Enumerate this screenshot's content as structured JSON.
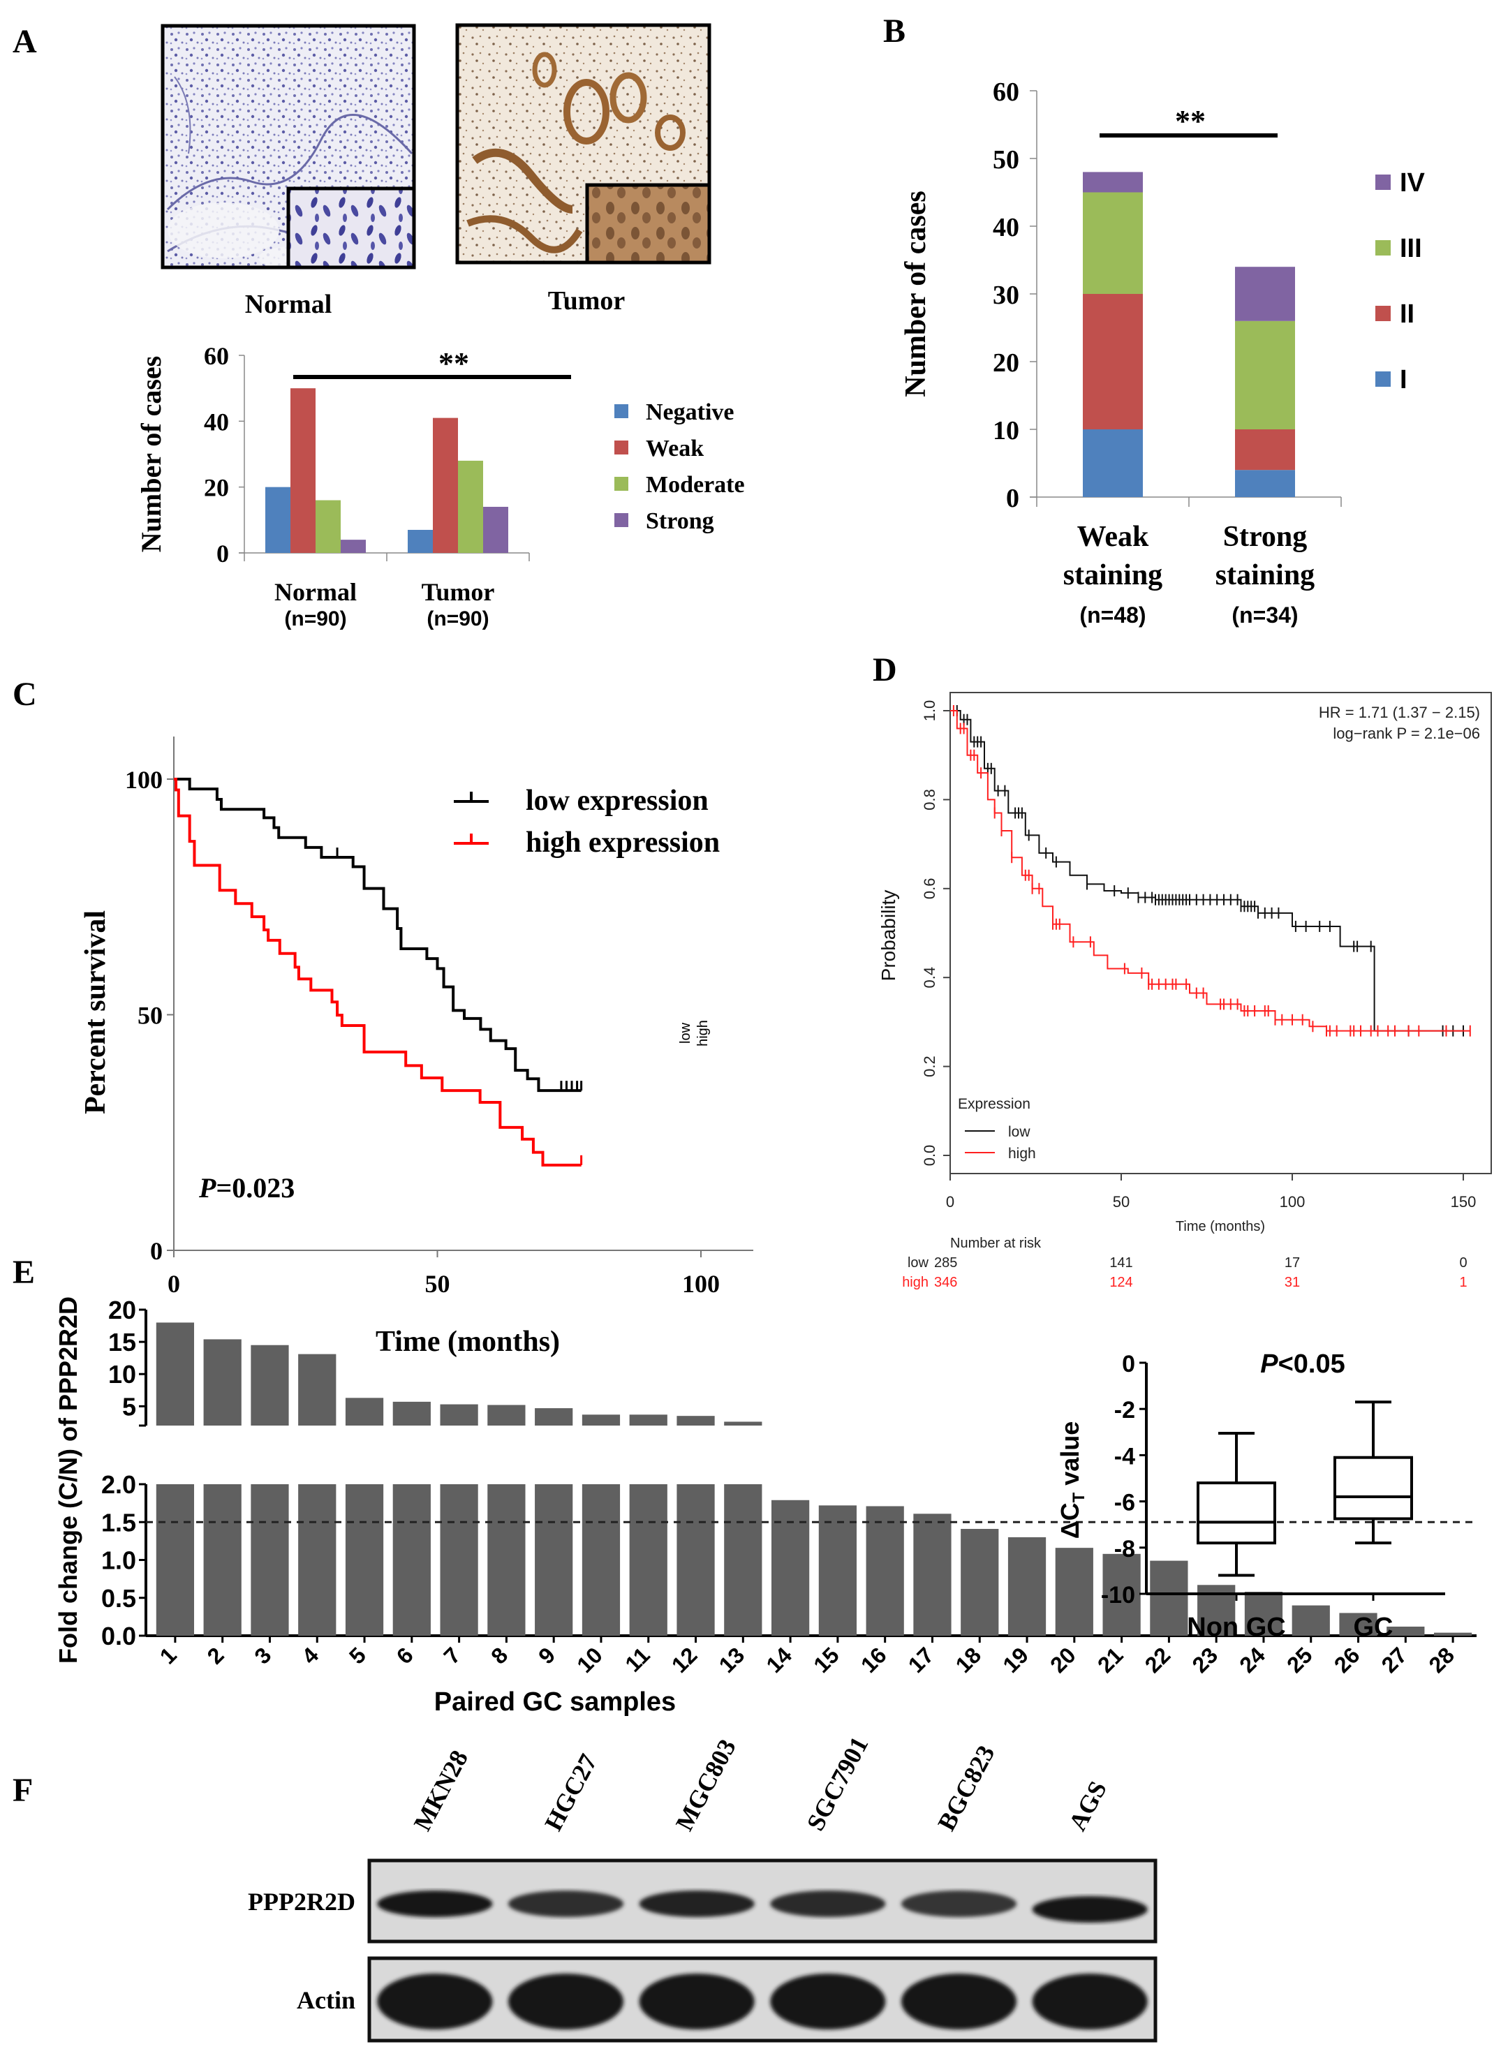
{
  "figure": {
    "panels": {
      "A": {
        "letter": "A",
        "images": [
          {
            "label": "Normal",
            "stain": "blue-hematoxylin",
            "inset": true
          },
          {
            "label": "Tumor",
            "stain": "brown-DAB",
            "inset": true
          }
        ]
      },
      "B": {
        "letter": "B"
      },
      "C": {
        "letter": "C"
      },
      "D": {
        "letter": "D"
      },
      "E": {
        "letter": "E"
      },
      "F": {
        "letter": "F"
      }
    },
    "colors": {
      "blue": "#4F81BD",
      "red": "#C0504D",
      "green": "#9BBB59",
      "purple": "#8064A2",
      "bar_gray": "#606060",
      "km_low": "#000000",
      "km_high": "#FF0000"
    }
  },
  "chart_data": [
    {
      "id": "A",
      "type": "bar",
      "title": "",
      "xlabel": "",
      "ylabel": "Number of cases",
      "ylim": [
        0,
        60
      ],
      "yticks": [
        "0",
        "20",
        "40",
        "60"
      ],
      "ytick_values": [
        0,
        20,
        40,
        60
      ],
      "categories": [
        "Normal",
        "Tumor"
      ],
      "category_sublabels": [
        "(n=90)",
        "(n=90)"
      ],
      "series": [
        {
          "name": "Negative",
          "values": [
            20,
            7
          ]
        },
        {
          "name": "Weak",
          "values": [
            50,
            41
          ]
        },
        {
          "name": "Moderate",
          "values": [
            16,
            28
          ]
        },
        {
          "name": "Strong",
          "values": [
            4,
            14
          ]
        }
      ],
      "legend_position": "right",
      "annotation": "**",
      "grid": false
    },
    {
      "id": "B",
      "type": "bar",
      "stacked": true,
      "title": "",
      "xlabel": "",
      "ylabel": "Number of cases",
      "ylim": [
        0,
        60
      ],
      "yticks": [
        "0",
        "10",
        "20",
        "30",
        "40",
        "50",
        "60"
      ],
      "ytick_values": [
        0,
        10,
        20,
        30,
        40,
        50,
        60
      ],
      "categories": [
        "Weak staining",
        "Strong staining"
      ],
      "category_lines": [
        [
          "Weak",
          "staining",
          "(n=48)"
        ],
        [
          "Strong",
          "staining",
          "(n=34)"
        ]
      ],
      "series": [
        {
          "name": "I",
          "values": [
            10,
            4
          ]
        },
        {
          "name": "II",
          "values": [
            20,
            6
          ]
        },
        {
          "name": "III",
          "values": [
            15,
            16
          ]
        },
        {
          "name": "IV",
          "values": [
            3,
            8
          ]
        }
      ],
      "legend_order": [
        "IV",
        "III",
        "II",
        "I"
      ],
      "legend_position": "right",
      "annotation": "**",
      "grid": false
    },
    {
      "id": "C",
      "type": "line",
      "subtype": "kaplan-meier",
      "title": "",
      "xlabel": "Time (months)",
      "ylabel": "Percent survival",
      "xlim": [
        0,
        110
      ],
      "ylim": [
        0,
        110
      ],
      "xticks": [
        "0",
        "50",
        "100"
      ],
      "xtick_values": [
        0,
        50,
        100
      ],
      "yticks": [
        "0",
        "50",
        "100"
      ],
      "ytick_values": [
        0,
        50,
        100
      ],
      "series": [
        {
          "name": "low expression",
          "end_label": "low",
          "steps": [
            [
              0,
              100
            ],
            [
              3,
              97.9
            ],
            [
              8.2,
              95.7
            ],
            [
              9,
              93.6
            ],
            [
              17.1,
              91.8
            ],
            [
              19,
              89.7
            ],
            [
              19.9,
              87.6
            ],
            [
              25,
              85.5
            ],
            [
              28,
              83.4
            ],
            [
              34,
              81.4
            ],
            [
              36.1,
              76.8
            ],
            [
              39.8,
              72.5
            ],
            [
              42.4,
              68.3
            ],
            [
              43.1,
              64
            ],
            [
              48,
              61.9
            ],
            [
              50,
              59.8
            ],
            [
              51.2,
              55.9
            ],
            [
              53,
              50.9
            ],
            [
              55.1,
              49.2
            ],
            [
              58.2,
              46.9
            ],
            [
              60.1,
              44.5
            ],
            [
              63,
              42.8
            ],
            [
              64.8,
              38.2
            ],
            [
              67.1,
              36.4
            ],
            [
              69.2,
              33.9
            ]
          ],
          "end_x": 77.3,
          "censor_x": [
            31,
            73.5,
            74.5,
            75.5,
            76.5,
            77.3
          ]
        },
        {
          "name": "high expression",
          "end_label": "high",
          "steps": [
            [
              0,
              100
            ],
            [
              0.4,
              97.7
            ],
            [
              0.9,
              92.2
            ],
            [
              3,
              86.8
            ],
            [
              3.9,
              81.7
            ],
            [
              8.7,
              76.4
            ],
            [
              11.7,
              73.6
            ],
            [
              14.8,
              70.8
            ],
            [
              17.1,
              68
            ],
            [
              17.9,
              65.8
            ],
            [
              20.1,
              63
            ],
            [
              23,
              60.1
            ],
            [
              23.7,
              57.6
            ],
            [
              26,
              55.2
            ],
            [
              30,
              52.7
            ],
            [
              31,
              49.9
            ],
            [
              31.9,
              47.7
            ],
            [
              36.1,
              42.1
            ],
            [
              44,
              39.2
            ],
            [
              47,
              36.6
            ],
            [
              50.9,
              33.9
            ],
            [
              58.1,
              31.4
            ],
            [
              61.9,
              26.1
            ],
            [
              66.1,
              23.6
            ],
            [
              68.2,
              20.8
            ],
            [
              70,
              18.1
            ]
          ],
          "end_x": 77.3,
          "censor_x": [
            77.3
          ]
        }
      ],
      "legend_position": "top-right",
      "annotation": "P=0.023",
      "annotation_italic": "P",
      "annotation_rest": "=0.023",
      "grid": false
    },
    {
      "id": "D",
      "type": "line",
      "subtype": "kaplan-meier",
      "title": "",
      "xlabel": "Time (months)",
      "ylabel": "Probability",
      "xlim": [
        0,
        155
      ],
      "ylim": [
        0,
        1.0
      ],
      "xticks": [
        "0",
        "50",
        "100",
        "150"
      ],
      "xtick_values": [
        0,
        50,
        100,
        150
      ],
      "yticks": [
        "0.0",
        "0.2",
        "0.4",
        "0.6",
        "0.8",
        "1.0"
      ],
      "ytick_values": [
        0,
        0.2,
        0.4,
        0.6,
        0.8,
        1.0
      ],
      "series": [
        {
          "name": "low",
          "points": [
            [
              0,
              1.0
            ],
            [
              3,
              0.98
            ],
            [
              6,
              0.93
            ],
            [
              10,
              0.87
            ],
            [
              13,
              0.82
            ],
            [
              17,
              0.77
            ],
            [
              22,
              0.72
            ],
            [
              26,
              0.68
            ],
            [
              30,
              0.66
            ],
            [
              35,
              0.63
            ],
            [
              40,
              0.61
            ],
            [
              45,
              0.595
            ],
            [
              50,
              0.59
            ],
            [
              55,
              0.58
            ],
            [
              60,
              0.575
            ],
            [
              75,
              0.575
            ],
            [
              85,
              0.56
            ],
            [
              90,
              0.545
            ],
            [
              98,
              0.545
            ],
            [
              100,
              0.515
            ],
            [
              114,
              0.515
            ],
            [
              114,
              0.47
            ],
            [
              124,
              0.47
            ],
            [
              124,
              0.28
            ],
            [
              150,
              0.28
            ]
          ],
          "censor_x": [
            2,
            4,
            5,
            7,
            8,
            9,
            11,
            12,
            14,
            16,
            19,
            20,
            21,
            23,
            28,
            31,
            40,
            48,
            52,
            55,
            57,
            59,
            60,
            61,
            62,
            63,
            64,
            65,
            66,
            67,
            68,
            69,
            70,
            72,
            74,
            76,
            78,
            80,
            82,
            84,
            85,
            86,
            87,
            88,
            89,
            90,
            92,
            94,
            96,
            101,
            104,
            108,
            111,
            118,
            119,
            123,
            134,
            144,
            147,
            150
          ]
        },
        {
          "name": "high",
          "points": [
            [
              0,
              1.0
            ],
            [
              2,
              0.96
            ],
            [
              5,
              0.9
            ],
            [
              8,
              0.86
            ],
            [
              11,
              0.8
            ],
            [
              13,
              0.77
            ],
            [
              15,
              0.73
            ],
            [
              18,
              0.67
            ],
            [
              21,
              0.63
            ],
            [
              24,
              0.6
            ],
            [
              27,
              0.56
            ],
            [
              30,
              0.52
            ],
            [
              35,
              0.48
            ],
            [
              42,
              0.45
            ],
            [
              46,
              0.42
            ],
            [
              52,
              0.41
            ],
            [
              58,
              0.385
            ],
            [
              70,
              0.365
            ],
            [
              75,
              0.34
            ],
            [
              85,
              0.325
            ],
            [
              95,
              0.305
            ],
            [
              105,
              0.29
            ],
            [
              110,
              0.28
            ],
            [
              152,
              0.28
            ]
          ],
          "censor_x": [
            1,
            3,
            4,
            6,
            7,
            9,
            13,
            15,
            18,
            22,
            23,
            24,
            26,
            30,
            31,
            32,
            36,
            41,
            51,
            56,
            58,
            59,
            61,
            63,
            65,
            66,
            69,
            72,
            74,
            79,
            80,
            82,
            84,
            86,
            87,
            89,
            92,
            93,
            95,
            97,
            100,
            103,
            106,
            110,
            111,
            113,
            117,
            118,
            120,
            123,
            125,
            128,
            130,
            134,
            137,
            145,
            152
          ]
        }
      ],
      "legend_title": "Expression",
      "legend_position": "bottom-left",
      "annotation_lines": [
        "HR = 1.71 (1.37 − 2.15)",
        "log−rank P = 2.1e−06"
      ],
      "risk_table": {
        "title": "Number at risk",
        "times": [
          0,
          50,
          100,
          150
        ],
        "rows": [
          {
            "label": "low",
            "values": [
              "285",
              "141",
              "17",
              "0"
            ]
          },
          {
            "label": "high",
            "values": [
              "346",
              "124",
              "31",
              "1"
            ]
          }
        ]
      },
      "grid": false
    },
    {
      "id": "E-bar",
      "type": "bar",
      "broken_axis": true,
      "title": "",
      "xlabel": "Paired GC samples",
      "ylabel": "Fold change (C/N) of PPP2R2D",
      "categories": [
        "1",
        "2",
        "3",
        "4",
        "5",
        "6",
        "7",
        "8",
        "9",
        "10",
        "11",
        "12",
        "13",
        "14",
        "15",
        "16",
        "17",
        "18",
        "19",
        "20",
        "21",
        "22",
        "23",
        "24",
        "25",
        "26",
        "27",
        "28"
      ],
      "values": [
        18.0,
        15.4,
        14.5,
        13.1,
        6.3,
        5.7,
        5.3,
        5.2,
        4.7,
        3.7,
        3.7,
        3.5,
        2.6,
        1.79,
        1.72,
        1.71,
        1.61,
        1.41,
        1.3,
        1.16,
        1.08,
        0.99,
        0.67,
        0.58,
        0.4,
        0.3,
        0.12,
        0.04
      ],
      "lower_ylim": [
        0,
        2.0
      ],
      "lower_yticks": [
        "0.0",
        "0.5",
        "1.0",
        "1.5",
        "2.0"
      ],
      "lower_ytick_values": [
        0,
        0.5,
        1.0,
        1.5,
        2.0
      ],
      "upper_ylim": [
        2.0,
        20
      ],
      "upper_yticks": [
        "5",
        "10",
        "15",
        "20"
      ],
      "upper_ytick_values": [
        5,
        10,
        15,
        20
      ],
      "reference_line": 1.5,
      "grid": false
    },
    {
      "id": "E-box",
      "type": "box",
      "title": "P<0.05",
      "title_italic": "P",
      "title_rest": "<0.05",
      "xlabel": "",
      "ylabel": "ΔC",
      "ylabel_sub": "T",
      "ylabel_rest": " value",
      "ylim": [
        -10,
        0
      ],
      "yticks": [
        "0",
        "-2",
        "-4",
        "-6",
        "-8",
        "-10"
      ],
      "ytick_values": [
        0,
        -2,
        -4,
        -6,
        -8,
        -10
      ],
      "categories": [
        "Non GC",
        "GC"
      ],
      "boxes": [
        {
          "name": "Non GC",
          "min": -9.2,
          "q1": -7.8,
          "median": -6.9,
          "q3": -5.2,
          "max": -3.05
        },
        {
          "name": "GC",
          "min": -7.8,
          "q1": -6.75,
          "median": -5.8,
          "q3": -4.1,
          "max": -1.7
        }
      ],
      "grid": false
    }
  ],
  "western_blot": {
    "lanes": [
      "MKN28",
      "HGC27",
      "MGC803",
      "SGC7901",
      "BGC823",
      "AGS"
    ],
    "rows": [
      {
        "label": "PPP2R2D",
        "intensities": [
          0.95,
          0.7,
          0.85,
          0.75,
          0.65,
          0.95
        ]
      },
      {
        "label": "Actin",
        "intensities": [
          1.0,
          1.0,
          1.0,
          1.0,
          1.0,
          1.0
        ]
      }
    ]
  }
}
